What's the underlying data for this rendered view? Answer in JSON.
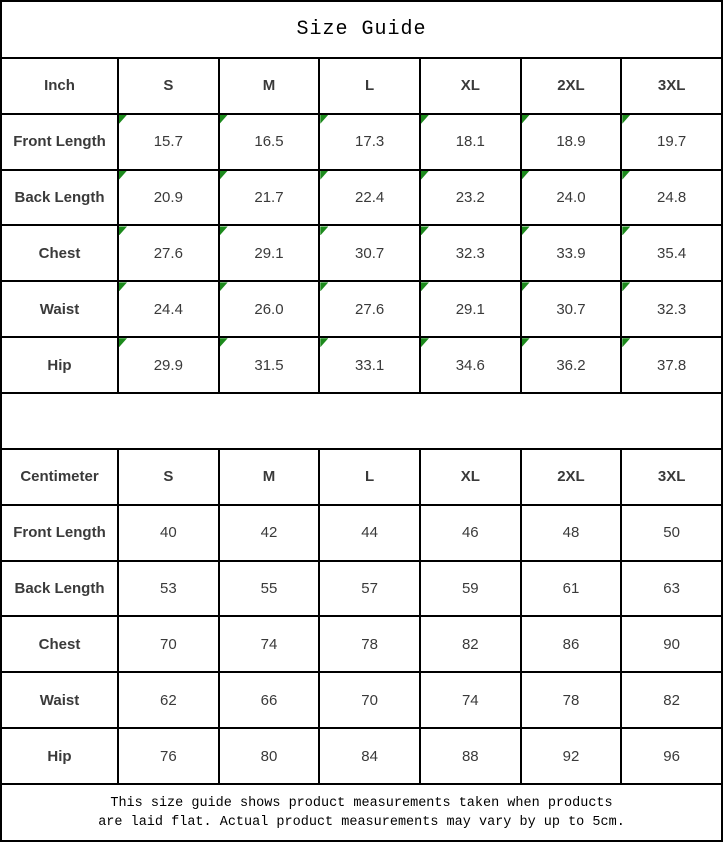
{
  "title": "Size Guide",
  "accent": {
    "corner_marker_color": "#1c8a1c",
    "border_color": "#000000",
    "value_text_color": "#3a3a3a"
  },
  "footer": {
    "line1": "This size guide shows product measurements taken when products",
    "line2": "are laid flat. Actual product measurements may vary by up to 5cm."
  },
  "chart_data": [
    {
      "type": "table",
      "title": "Size Guide",
      "unit": "Inch",
      "corner_markers": true,
      "columns": [
        "S",
        "M",
        "L",
        "XL",
        "2XL",
        "3XL"
      ],
      "rows": [
        {
          "label": "Front Length",
          "values": [
            "15.7",
            "16.5",
            "17.3",
            "18.1",
            "18.9",
            "19.7"
          ]
        },
        {
          "label": "Back Length",
          "values": [
            "20.9",
            "21.7",
            "22.4",
            "23.2",
            "24.0",
            "24.8"
          ]
        },
        {
          "label": "Chest",
          "values": [
            "27.6",
            "29.1",
            "30.7",
            "32.3",
            "33.9",
            "35.4"
          ]
        },
        {
          "label": "Waist",
          "values": [
            "24.4",
            "26.0",
            "27.6",
            "29.1",
            "30.7",
            "32.3"
          ]
        },
        {
          "label": "Hip",
          "values": [
            "29.9",
            "31.5",
            "33.1",
            "34.6",
            "36.2",
            "37.8"
          ]
        }
      ]
    },
    {
      "type": "table",
      "title": "Size Guide",
      "unit": "Centimeter",
      "corner_markers": false,
      "columns": [
        "S",
        "M",
        "L",
        "XL",
        "2XL",
        "3XL"
      ],
      "rows": [
        {
          "label": "Front Length",
          "values": [
            "40",
            "42",
            "44",
            "46",
            "48",
            "50"
          ]
        },
        {
          "label": "Back Length",
          "values": [
            "53",
            "55",
            "57",
            "59",
            "61",
            "63"
          ]
        },
        {
          "label": "Chest",
          "values": [
            "70",
            "74",
            "78",
            "82",
            "86",
            "90"
          ]
        },
        {
          "label": "Waist",
          "values": [
            "62",
            "66",
            "70",
            "74",
            "78",
            "82"
          ]
        },
        {
          "label": "Hip",
          "values": [
            "76",
            "80",
            "84",
            "88",
            "92",
            "96"
          ]
        }
      ]
    }
  ]
}
